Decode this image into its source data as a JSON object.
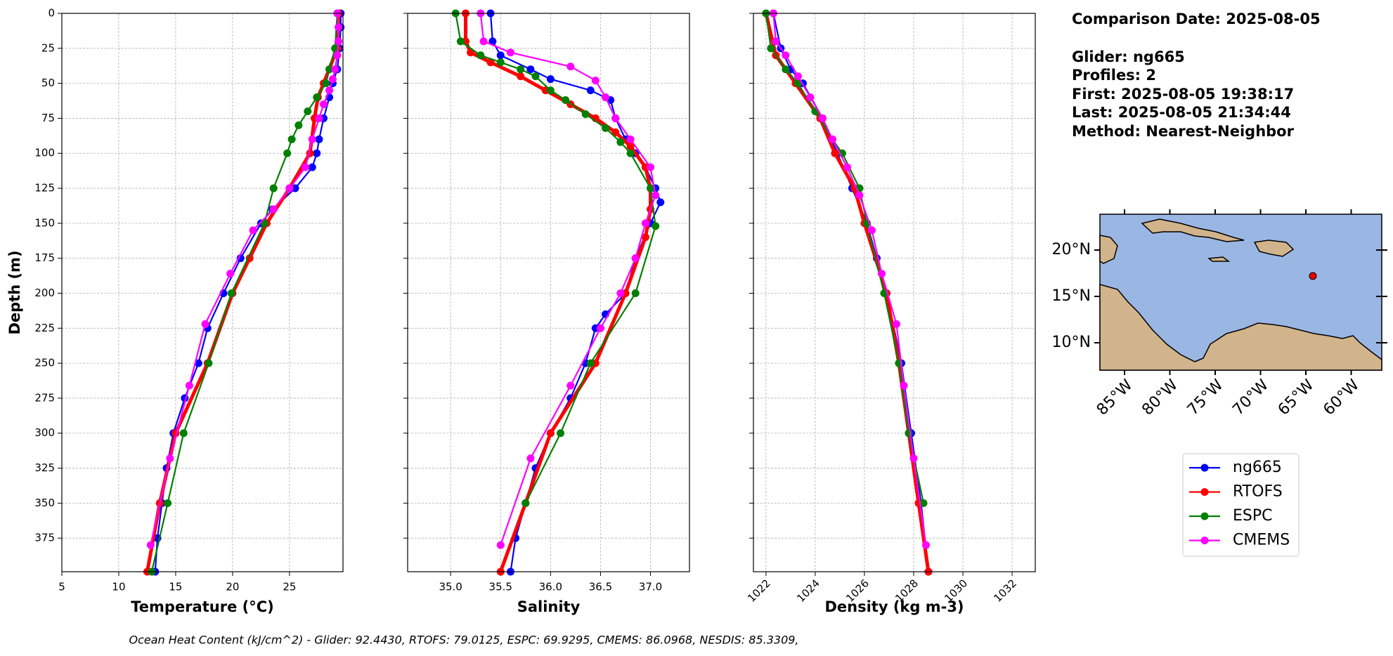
{
  "chart_data": [
    {
      "type": "line",
      "xlabel": "Temperature (°C)",
      "ylabel": "Depth (m)",
      "xlim": [
        5,
        29.7
      ],
      "ylim": [
        0,
        399
      ],
      "invert_y": true,
      "xticks": [
        5,
        10,
        15,
        20,
        25
      ],
      "yticks": [
        0,
        25,
        50,
        75,
        100,
        125,
        150,
        175,
        200,
        225,
        250,
        275,
        300,
        325,
        350,
        375
      ],
      "show_ytick_labels": true,
      "grid": true,
      "series": [
        {
          "name": "ng665",
          "color": "#0000ff",
          "depth": [
            0,
            10,
            25,
            40,
            50,
            60,
            75,
            90,
            100,
            110,
            125,
            140,
            150,
            175,
            200,
            225,
            250,
            275,
            300,
            325,
            350,
            375,
            399
          ],
          "values": [
            29.5,
            29.5,
            29.4,
            29.2,
            28.8,
            28.5,
            28.0,
            27.6,
            27.4,
            27.0,
            25.5,
            23.5,
            22.5,
            20.7,
            19.2,
            17.8,
            17.0,
            15.8,
            14.8,
            14.2,
            13.8,
            13.4,
            13.2
          ]
        },
        {
          "name": "RTOFS",
          "color": "#ff0000",
          "depth": [
            0,
            25,
            50,
            60,
            75,
            100,
            125,
            150,
            175,
            200,
            250,
            300,
            350,
            399
          ],
          "values": [
            29.3,
            29.2,
            28.0,
            27.5,
            27.2,
            26.8,
            25.0,
            23.0,
            21.5,
            20.0,
            17.8,
            15.0,
            13.6,
            12.5
          ]
        },
        {
          "name": "ESPC",
          "color": "#008000",
          "depth": [
            0,
            25,
            40,
            50,
            60,
            70,
            80,
            90,
            100,
            125,
            150,
            200,
            250,
            300,
            350,
            399
          ],
          "values": [
            29.2,
            29.0,
            28.5,
            28.2,
            27.4,
            26.6,
            25.8,
            25.2,
            24.8,
            23.6,
            22.8,
            19.9,
            17.9,
            15.7,
            14.3,
            12.9
          ]
        },
        {
          "name": "CMEMS",
          "color": "#ff00ff",
          "depth": [
            0,
            10,
            20,
            30,
            40,
            47,
            55,
            65,
            75,
            90,
            110,
            125,
            140,
            155,
            186,
            222,
            266,
            318,
            380
          ],
          "values": [
            29.2,
            29.3,
            29.3,
            29.2,
            29.0,
            28.8,
            28.5,
            28.0,
            27.6,
            27.0,
            26.4,
            25.0,
            23.6,
            21.8,
            19.8,
            17.6,
            16.2,
            14.5,
            12.8
          ]
        }
      ],
      "legend": "right"
    },
    {
      "type": "line",
      "xlabel": "Salinity",
      "xlim": [
        34.57,
        37.39
      ],
      "ylim": [
        0,
        399
      ],
      "invert_y": true,
      "xticks": [
        {
          "value": 35,
          "label": "35.0"
        },
        35.5,
        {
          "value": 36,
          "label": "36.0"
        },
        36.5,
        {
          "value": 37,
          "label": "37.0"
        }
      ],
      "yticks": [
        0,
        25,
        50,
        75,
        100,
        125,
        150,
        175,
        200,
        225,
        250,
        275,
        300,
        325,
        350,
        375
      ],
      "show_ytick_labels": false,
      "grid": true,
      "series": [
        {
          "color": "#0000ff",
          "depth": [
            0,
            20,
            30,
            40,
            47,
            55,
            62,
            75,
            90,
            100,
            110,
            125,
            135,
            150,
            175,
            200,
            215,
            225,
            250,
            275,
            300,
            325,
            350,
            375,
            399
          ],
          "values": [
            35.4,
            35.42,
            35.5,
            35.8,
            36.0,
            36.4,
            36.6,
            36.65,
            36.75,
            36.85,
            36.95,
            37.05,
            37.1,
            37.0,
            36.85,
            36.75,
            36.55,
            36.45,
            36.35,
            36.2,
            36.0,
            35.85,
            35.75,
            35.65,
            35.6
          ]
        },
        {
          "color": "#ff0000",
          "depth": [
            0,
            20,
            28,
            35,
            45,
            55,
            65,
            75,
            85,
            95,
            110,
            125,
            140,
            160,
            200,
            250,
            300,
            350,
            399
          ],
          "values": [
            35.15,
            35.15,
            35.2,
            35.4,
            35.7,
            35.95,
            36.2,
            36.45,
            36.65,
            36.8,
            36.95,
            37.0,
            37.0,
            36.95,
            36.75,
            36.45,
            36.0,
            35.75,
            35.5
          ]
        },
        {
          "color": "#008000",
          "depth": [
            0,
            20,
            30,
            35,
            40,
            45,
            55,
            62,
            72,
            82,
            92,
            100,
            125,
            152,
            200,
            250,
            300,
            350
          ],
          "values": [
            35.05,
            35.1,
            35.3,
            35.5,
            35.7,
            35.85,
            36.0,
            36.15,
            36.35,
            36.55,
            36.7,
            36.8,
            37.0,
            37.05,
            36.85,
            36.4,
            36.1,
            35.75
          ]
        },
        {
          "color": "#ff00ff",
          "depth": [
            0,
            20,
            28,
            38,
            48,
            60,
            75,
            90,
            110,
            130,
            150,
            175,
            200,
            225,
            266,
            318,
            380
          ],
          "values": [
            35.3,
            35.33,
            35.6,
            36.2,
            36.45,
            36.55,
            36.65,
            36.8,
            37.0,
            37.05,
            36.95,
            36.85,
            36.7,
            36.5,
            36.2,
            35.8,
            35.5
          ]
        }
      ]
    },
    {
      "type": "line",
      "xlabel": "Density (kg m-3)",
      "xlim": [
        1021.49,
        1032.94
      ],
      "ylim": [
        0,
        399
      ],
      "invert_y": true,
      "xticks": [
        1022,
        1024,
        1026,
        1028,
        1030,
        1032
      ],
      "yticks": [
        0,
        25,
        50,
        75,
        100,
        125,
        150,
        175,
        200,
        225,
        250,
        275,
        300,
        325,
        350,
        375
      ],
      "show_ytick_labels": false,
      "grid": true,
      "series": [
        {
          "color": "#0000ff",
          "depth": [
            0,
            25,
            40,
            50,
            75,
            100,
            125,
            150,
            175,
            200,
            250,
            300,
            350,
            399
          ],
          "values": [
            1022.3,
            1022.6,
            1023.0,
            1023.5,
            1024.3,
            1024.9,
            1025.5,
            1026.1,
            1026.5,
            1026.9,
            1027.5,
            1027.9,
            1028.3,
            1028.6
          ]
        },
        {
          "color": "#ff0000",
          "depth": [
            0,
            30,
            50,
            75,
            100,
            125,
            150,
            200,
            250,
            300,
            350,
            399
          ],
          "values": [
            1022.0,
            1022.4,
            1023.2,
            1024.2,
            1024.8,
            1025.6,
            1026.0,
            1026.9,
            1027.4,
            1027.8,
            1028.2,
            1028.6
          ]
        },
        {
          "color": "#008000",
          "depth": [
            0,
            25,
            40,
            50,
            70,
            90,
            100,
            125,
            150,
            200,
            250,
            300,
            350
          ],
          "values": [
            1022.0,
            1022.2,
            1022.8,
            1023.3,
            1024.0,
            1024.7,
            1025.1,
            1025.8,
            1026.1,
            1026.8,
            1027.4,
            1027.8,
            1028.4
          ]
        },
        {
          "color": "#ff00ff",
          "depth": [
            0,
            20,
            30,
            45,
            60,
            75,
            90,
            110,
            130,
            155,
            186,
            222,
            266,
            318,
            380
          ],
          "values": [
            1022.3,
            1022.4,
            1022.8,
            1023.3,
            1023.8,
            1024.3,
            1024.7,
            1025.3,
            1025.8,
            1026.3,
            1026.7,
            1027.3,
            1027.6,
            1028.0,
            1028.5
          ]
        }
      ]
    }
  ],
  "info": {
    "title": "Comparison Date: 2025-08-05",
    "lines": [
      "Glider: ng665",
      "Profiles: 2",
      "First: 2025-08-05 19:38:17",
      "Last: 2025-08-05 21:34:44",
      "Method: Nearest-Neighbor"
    ]
  },
  "map": {
    "yticks": [
      "20°N",
      "15°N",
      "10°N"
    ],
    "xticks": [
      "85°W",
      "80°W",
      "75°W",
      "70°W",
      "65°W",
      "60°W"
    ]
  },
  "footer": "Ocean Heat Content (kJ/cm^2) - Glider: 92.4430,  RTOFS: 79.0125,  ESPC: 69.9295,  CMEMS: 86.0968,  NESDIS: 85.3309,"
}
